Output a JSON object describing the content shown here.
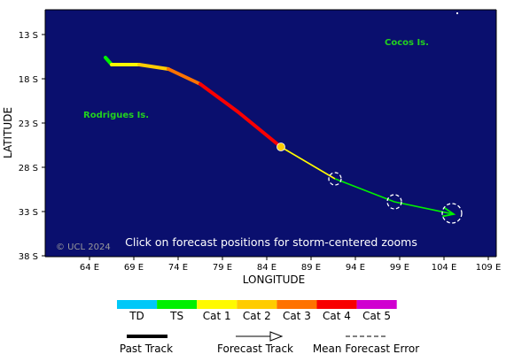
{
  "map": {
    "frame_color": "#0a0f6e",
    "x_axis_title": "LONGITUDE",
    "y_axis_title": "LATITUDE",
    "longitude_ticks": [
      "64 E",
      "69 E",
      "74 E",
      "79 E",
      "84 E",
      "89 E",
      "94 E",
      "99 E",
      "104 E",
      "109 E"
    ],
    "latitude_ticks": [
      "13 S",
      "18 S",
      "23 S",
      "28 S",
      "33 S",
      "38 S"
    ],
    "places": [
      {
        "name": "Cocos Is.",
        "lon": 97.3,
        "lat": 14.2
      },
      {
        "name": "Rodrigues Is.",
        "lon": 63.3,
        "lat": 22.4
      }
    ],
    "copyright": "© UCL 2024",
    "click_message": "Click on forecast positions for storm-centered zooms"
  },
  "track": {
    "past": [
      {
        "lon": 65.8,
        "lat": 15.6,
        "category": "TS"
      },
      {
        "lon": 66.5,
        "lat": 16.4,
        "category": "TS"
      },
      {
        "lon": 69.6,
        "lat": 16.4,
        "category": "Cat 1"
      },
      {
        "lon": 72.9,
        "lat": 16.9,
        "category": "Cat 2"
      },
      {
        "lon": 76.5,
        "lat": 18.6,
        "category": "Cat 3"
      },
      {
        "lon": 80.7,
        "lat": 21.7,
        "category": "Cat 4"
      },
      {
        "lon": 85.6,
        "lat": 25.7,
        "category": "Cat 4"
      }
    ],
    "current": {
      "lon": 85.6,
      "lat": 25.7
    },
    "forecast": [
      {
        "lon": 85.6,
        "lat": 25.7,
        "category": "Cat 1"
      },
      {
        "lon": 91.7,
        "lat": 29.3,
        "category": "Cat 1"
      },
      {
        "lon": 98.4,
        "lat": 31.9,
        "category": "TS"
      },
      {
        "lon": 105.1,
        "lat": 33.3,
        "category": "TS"
      }
    ],
    "error_circles": [
      {
        "lon": 91.7,
        "lat": 29.3,
        "radius_deg": 0.7
      },
      {
        "lon": 98.4,
        "lat": 31.9,
        "radius_deg": 0.8
      },
      {
        "lon": 104.9,
        "lat": 33.2,
        "radius_deg": 1.1
      }
    ]
  },
  "legend": {
    "categories": [
      {
        "label": "TD",
        "color": "#00c8f8"
      },
      {
        "label": "TS",
        "color": "#00f000"
      },
      {
        "label": "Cat 1",
        "color": "#fffa00"
      },
      {
        "label": "Cat 2",
        "color": "#ffcc00"
      },
      {
        "label": "Cat 3",
        "color": "#ff7200"
      },
      {
        "label": "Cat 4",
        "color": "#f80000"
      },
      {
        "label": "Cat 5",
        "color": "#d000d0"
      }
    ],
    "past_track_label": "Past Track",
    "forecast_track_label": "Forecast Track",
    "error_label": "Mean Forecast Error"
  }
}
